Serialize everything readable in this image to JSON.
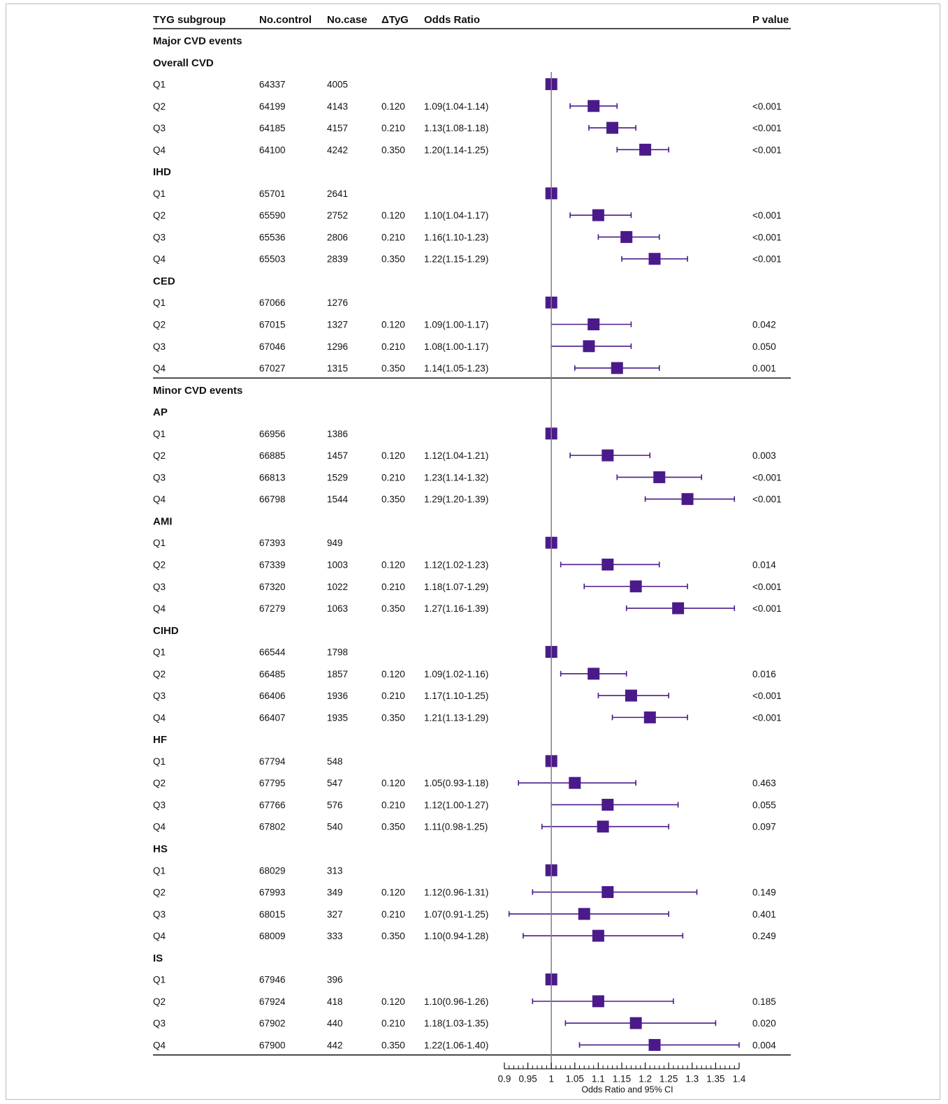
{
  "columns": {
    "subgroup": "TYG subgroup",
    "control": "No.control",
    "case": "No.case",
    "dtyg": "ΔTyG",
    "or": "Odds Ratio",
    "p": "P value"
  },
  "colors": {
    "marker": "#4b1a8a",
    "line": "#111111",
    "ref_line": "#7f7f7f"
  },
  "chart_data": {
    "type": "forest",
    "xlabel": "Odds Ratio and 95% CI",
    "xlim": [
      0.9,
      1.4
    ],
    "ticks": [
      "0.9",
      "0.95",
      "1",
      "1.05",
      "1.1",
      "1.15",
      "1.2",
      "1.25",
      "1.3",
      "1.35",
      "1.4"
    ],
    "reference_line": 1,
    "sections": [
      {
        "title": "Major CVD events",
        "groups": [
          {
            "name": "Overall CVD",
            "rows": [
              {
                "label": "Q1",
                "control": "64337",
                "case": "4005",
                "dtyg": "",
                "or_text": "",
                "p": "",
                "or": 1,
                "lo": null,
                "hi": null
              },
              {
                "label": "Q2",
                "control": "64199",
                "case": "4143",
                "dtyg": "0.120",
                "or_text": "1.09(1.04-1.14)",
                "p": "<0.001",
                "or": 1.09,
                "lo": 1.04,
                "hi": 1.14
              },
              {
                "label": "Q3",
                "control": "64185",
                "case": "4157",
                "dtyg": "0.210",
                "or_text": "1.13(1.08-1.18)",
                "p": "<0.001",
                "or": 1.13,
                "lo": 1.08,
                "hi": 1.18
              },
              {
                "label": "Q4",
                "control": "64100",
                "case": "4242",
                "dtyg": "0.350",
                "or_text": "1.20(1.14-1.25)",
                "p": "<0.001",
                "or": 1.2,
                "lo": 1.14,
                "hi": 1.25
              }
            ]
          },
          {
            "name": "IHD",
            "rows": [
              {
                "label": "Q1",
                "control": "65701",
                "case": "2641",
                "dtyg": "",
                "or_text": "",
                "p": "",
                "or": 1,
                "lo": null,
                "hi": null
              },
              {
                "label": "Q2",
                "control": "65590",
                "case": "2752",
                "dtyg": "0.120",
                "or_text": "1.10(1.04-1.17)",
                "p": "<0.001",
                "or": 1.1,
                "lo": 1.04,
                "hi": 1.17
              },
              {
                "label": "Q3",
                "control": "65536",
                "case": "2806",
                "dtyg": "0.210",
                "or_text": "1.16(1.10-1.23)",
                "p": "<0.001",
                "or": 1.16,
                "lo": 1.1,
                "hi": 1.23
              },
              {
                "label": "Q4",
                "control": "65503",
                "case": "2839",
                "dtyg": "0.350",
                "or_text": "1.22(1.15-1.29)",
                "p": "<0.001",
                "or": 1.22,
                "lo": 1.15,
                "hi": 1.29
              }
            ]
          },
          {
            "name": "CED",
            "rows": [
              {
                "label": "Q1",
                "control": "67066",
                "case": "1276",
                "dtyg": "",
                "or_text": "",
                "p": "",
                "or": 1,
                "lo": null,
                "hi": null
              },
              {
                "label": "Q2",
                "control": "67015",
                "case": "1327",
                "dtyg": "0.120",
                "or_text": "1.09(1.00-1.17)",
                "p": "0.042",
                "or": 1.09,
                "lo": 1.0,
                "hi": 1.17
              },
              {
                "label": "Q3",
                "control": "67046",
                "case": "1296",
                "dtyg": "0.210",
                "or_text": "1.08(1.00-1.17)",
                "p": "0.050",
                "or": 1.08,
                "lo": 1.0,
                "hi": 1.17
              },
              {
                "label": "Q4",
                "control": "67027",
                "case": "1315",
                "dtyg": "0.350",
                "or_text": "1.14(1.05-1.23)",
                "p": "0.001",
                "or": 1.14,
                "lo": 1.05,
                "hi": 1.23
              }
            ]
          }
        ]
      },
      {
        "title": "Minor CVD events",
        "groups": [
          {
            "name": "AP",
            "rows": [
              {
                "label": "Q1",
                "control": "66956",
                "case": "1386",
                "dtyg": "",
                "or_text": "",
                "p": "",
                "or": 1,
                "lo": null,
                "hi": null
              },
              {
                "label": "Q2",
                "control": "66885",
                "case": "1457",
                "dtyg": "0.120",
                "or_text": "1.12(1.04-1.21)",
                "p": "0.003",
                "or": 1.12,
                "lo": 1.04,
                "hi": 1.21
              },
              {
                "label": "Q3",
                "control": "66813",
                "case": "1529",
                "dtyg": "0.210",
                "or_text": "1.23(1.14-1.32)",
                "p": "<0.001",
                "or": 1.23,
                "lo": 1.14,
                "hi": 1.32
              },
              {
                "label": "Q4",
                "control": "66798",
                "case": "1544",
                "dtyg": "0.350",
                "or_text": "1.29(1.20-1.39)",
                "p": "<0.001",
                "or": 1.29,
                "lo": 1.2,
                "hi": 1.39
              }
            ]
          },
          {
            "name": "AMI",
            "rows": [
              {
                "label": "Q1",
                "control": "67393",
                "case": "949",
                "dtyg": "",
                "or_text": "",
                "p": "",
                "or": 1,
                "lo": null,
                "hi": null
              },
              {
                "label": "Q2",
                "control": "67339",
                "case": "1003",
                "dtyg": "0.120",
                "or_text": "1.12(1.02-1.23)",
                "p": "0.014",
                "or": 1.12,
                "lo": 1.02,
                "hi": 1.23
              },
              {
                "label": "Q3",
                "control": "67320",
                "case": "1022",
                "dtyg": "0.210",
                "or_text": "1.18(1.07-1.29)",
                "p": "<0.001",
                "or": 1.18,
                "lo": 1.07,
                "hi": 1.29
              },
              {
                "label": "Q4",
                "control": "67279",
                "case": "1063",
                "dtyg": "0.350",
                "or_text": "1.27(1.16-1.39)",
                "p": "<0.001",
                "or": 1.27,
                "lo": 1.16,
                "hi": 1.39
              }
            ]
          },
          {
            "name": "CIHD",
            "rows": [
              {
                "label": "Q1",
                "control": "66544",
                "case": "1798",
                "dtyg": "",
                "or_text": "",
                "p": "",
                "or": 1,
                "lo": null,
                "hi": null
              },
              {
                "label": "Q2",
                "control": "66485",
                "case": "1857",
                "dtyg": "0.120",
                "or_text": "1.09(1.02-1.16)",
                "p": "0.016",
                "or": 1.09,
                "lo": 1.02,
                "hi": 1.16
              },
              {
                "label": "Q3",
                "control": "66406",
                "case": "1936",
                "dtyg": "0.210",
                "or_text": "1.17(1.10-1.25)",
                "p": "<0.001",
                "or": 1.17,
                "lo": 1.1,
                "hi": 1.25
              },
              {
                "label": "Q4",
                "control": "66407",
                "case": "1935",
                "dtyg": "0.350",
                "or_text": "1.21(1.13-1.29)",
                "p": "<0.001",
                "or": 1.21,
                "lo": 1.13,
                "hi": 1.29
              }
            ]
          },
          {
            "name": "HF",
            "rows": [
              {
                "label": "Q1",
                "control": "67794",
                "case": "548",
                "dtyg": "",
                "or_text": "",
                "p": "",
                "or": 1,
                "lo": null,
                "hi": null
              },
              {
                "label": "Q2",
                "control": "67795",
                "case": "547",
                "dtyg": "0.120",
                "or_text": "1.05(0.93-1.18)",
                "p": "0.463",
                "or": 1.05,
                "lo": 0.93,
                "hi": 1.18
              },
              {
                "label": "Q3",
                "control": "67766",
                "case": "576",
                "dtyg": "0.210",
                "or_text": "1.12(1.00-1.27)",
                "p": "0.055",
                "or": 1.12,
                "lo": 1.0,
                "hi": 1.27
              },
              {
                "label": "Q4",
                "control": "67802",
                "case": "540",
                "dtyg": "0.350",
                "or_text": "1.11(0.98-1.25)",
                "p": "0.097",
                "or": 1.11,
                "lo": 0.98,
                "hi": 1.25
              }
            ]
          },
          {
            "name": "HS",
            "rows": [
              {
                "label": "Q1",
                "control": "68029",
                "case": "313",
                "dtyg": "",
                "or_text": "",
                "p": "",
                "or": 1,
                "lo": null,
                "hi": null
              },
              {
                "label": "Q2",
                "control": "67993",
                "case": "349",
                "dtyg": "0.120",
                "or_text": "1.12(0.96-1.31)",
                "p": "0.149",
                "or": 1.12,
                "lo": 0.96,
                "hi": 1.31
              },
              {
                "label": "Q3",
                "control": "68015",
                "case": "327",
                "dtyg": "0.210",
                "or_text": "1.07(0.91-1.25)",
                "p": "0.401",
                "or": 1.07,
                "lo": 0.91,
                "hi": 1.25
              },
              {
                "label": "Q4",
                "control": "68009",
                "case": "333",
                "dtyg": "0.350",
                "or_text": "1.10(0.94-1.28)",
                "p": "0.249",
                "or": 1.1,
                "lo": 0.94,
                "hi": 1.28
              }
            ]
          },
          {
            "name": "IS",
            "rows": [
              {
                "label": "Q1",
                "control": "67946",
                "case": "396",
                "dtyg": "",
                "or_text": "",
                "p": "",
                "or": 1,
                "lo": null,
                "hi": null
              },
              {
                "label": "Q2",
                "control": "67924",
                "case": "418",
                "dtyg": "0.120",
                "or_text": "1.10(0.96-1.26)",
                "p": "0.185",
                "or": 1.1,
                "lo": 0.96,
                "hi": 1.26
              },
              {
                "label": "Q3",
                "control": "67902",
                "case": "440",
                "dtyg": "0.210",
                "or_text": "1.18(1.03-1.35)",
                "p": "0.020",
                "or": 1.18,
                "lo": 1.03,
                "hi": 1.35
              },
              {
                "label": "Q4",
                "control": "67900",
                "case": "442",
                "dtyg": "0.350",
                "or_text": "1.22(1.06-1.40)",
                "p": "0.004",
                "or": 1.22,
                "lo": 1.06,
                "hi": 1.4
              }
            ]
          }
        ]
      }
    ]
  }
}
